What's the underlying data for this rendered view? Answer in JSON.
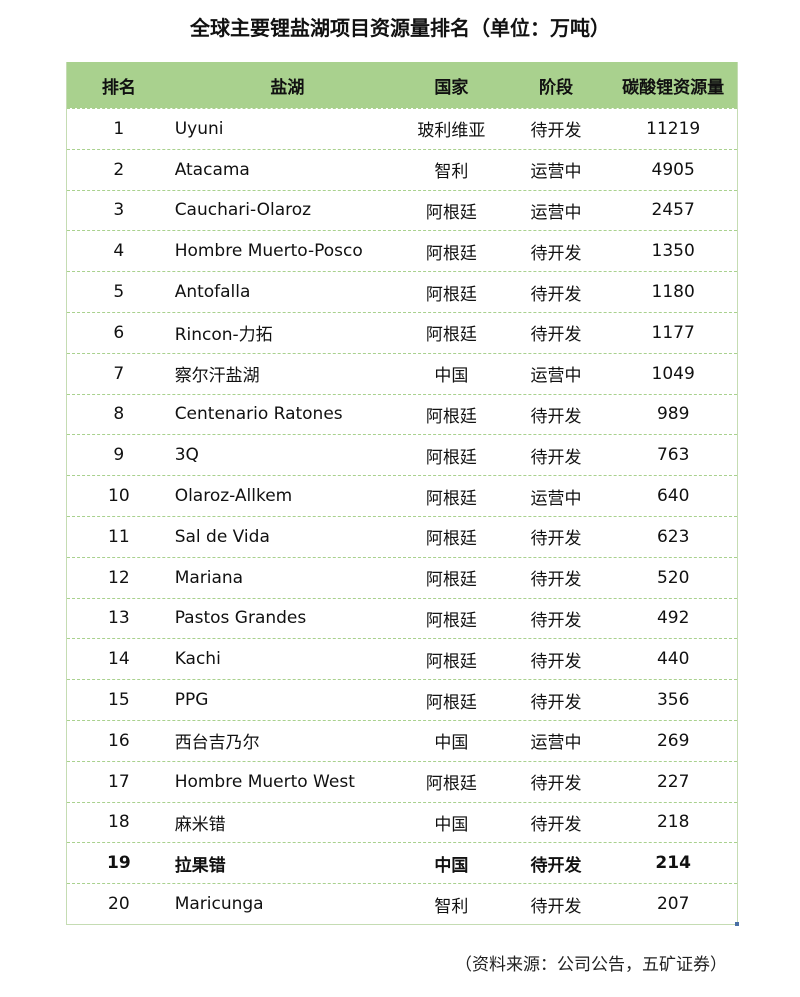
{
  "title": "全球主要锂盐湖项目资源量排名（单位：万吨）",
  "headers": [
    "排名",
    "盐湖",
    "国家",
    "阶段",
    "碳酸锂资源量"
  ],
  "rows": [
    [
      "1",
      "Uyuni",
      "玻利维亚",
      "待开发",
      "11219"
    ],
    [
      "2",
      "Atacama",
      "智利",
      "运营中",
      "4905"
    ],
    [
      "3",
      "Cauchari-Olaroz",
      "阿根廷",
      "运营中",
      "2457"
    ],
    [
      "4",
      "Hombre Muerto-Posco",
      "阿根廷",
      "待开发",
      "1350"
    ],
    [
      "5",
      "Antofalla",
      "阿根廷",
      "待开发",
      "1180"
    ],
    [
      "6",
      "Rincon-力拓",
      "阿根廷",
      "待开发",
      "1177"
    ],
    [
      "7",
      "察尔汗盐湖",
      "中国",
      "运营中",
      "1049"
    ],
    [
      "8",
      "Centenario Ratones",
      "阿根廷",
      "待开发",
      "989"
    ],
    [
      "9",
      "3Q",
      "阿根廷",
      "待开发",
      "763"
    ],
    [
      "10",
      "Olaroz-Allkem",
      "阿根廷",
      "运营中",
      "640"
    ],
    [
      "11",
      "Sal de Vida",
      "阿根廷",
      "待开发",
      "623"
    ],
    [
      "12",
      "Mariana",
      "阿根廷",
      "待开发",
      "520"
    ],
    [
      "13",
      "Pastos Grandes",
      "阿根廷",
      "待开发",
      "492"
    ],
    [
      "14",
      "Kachi",
      "阿根廷",
      "待开发",
      "440"
    ],
    [
      "15",
      "PPG",
      "阿根廷",
      "待开发",
      "356"
    ],
    [
      "16",
      "西台吉乃尔",
      "中国",
      "运营中",
      "269"
    ],
    [
      "17",
      "Hombre Muerto West",
      "阿根廷",
      "待开发",
      "227"
    ],
    [
      "18",
      "麻米错",
      "中国",
      "待开发",
      "218"
    ],
    [
      "19",
      "拉果错",
      "中国",
      "待开发",
      "214"
    ],
    [
      "20",
      "Maricunga",
      "智利",
      "待开发",
      "207"
    ]
  ],
  "highlighted_row": 19,
  "source": "（资料来源：公司公告，五矿证券）",
  "colors": {
    "header_bg": "#a9d18e",
    "divider": "#a9d18e"
  }
}
